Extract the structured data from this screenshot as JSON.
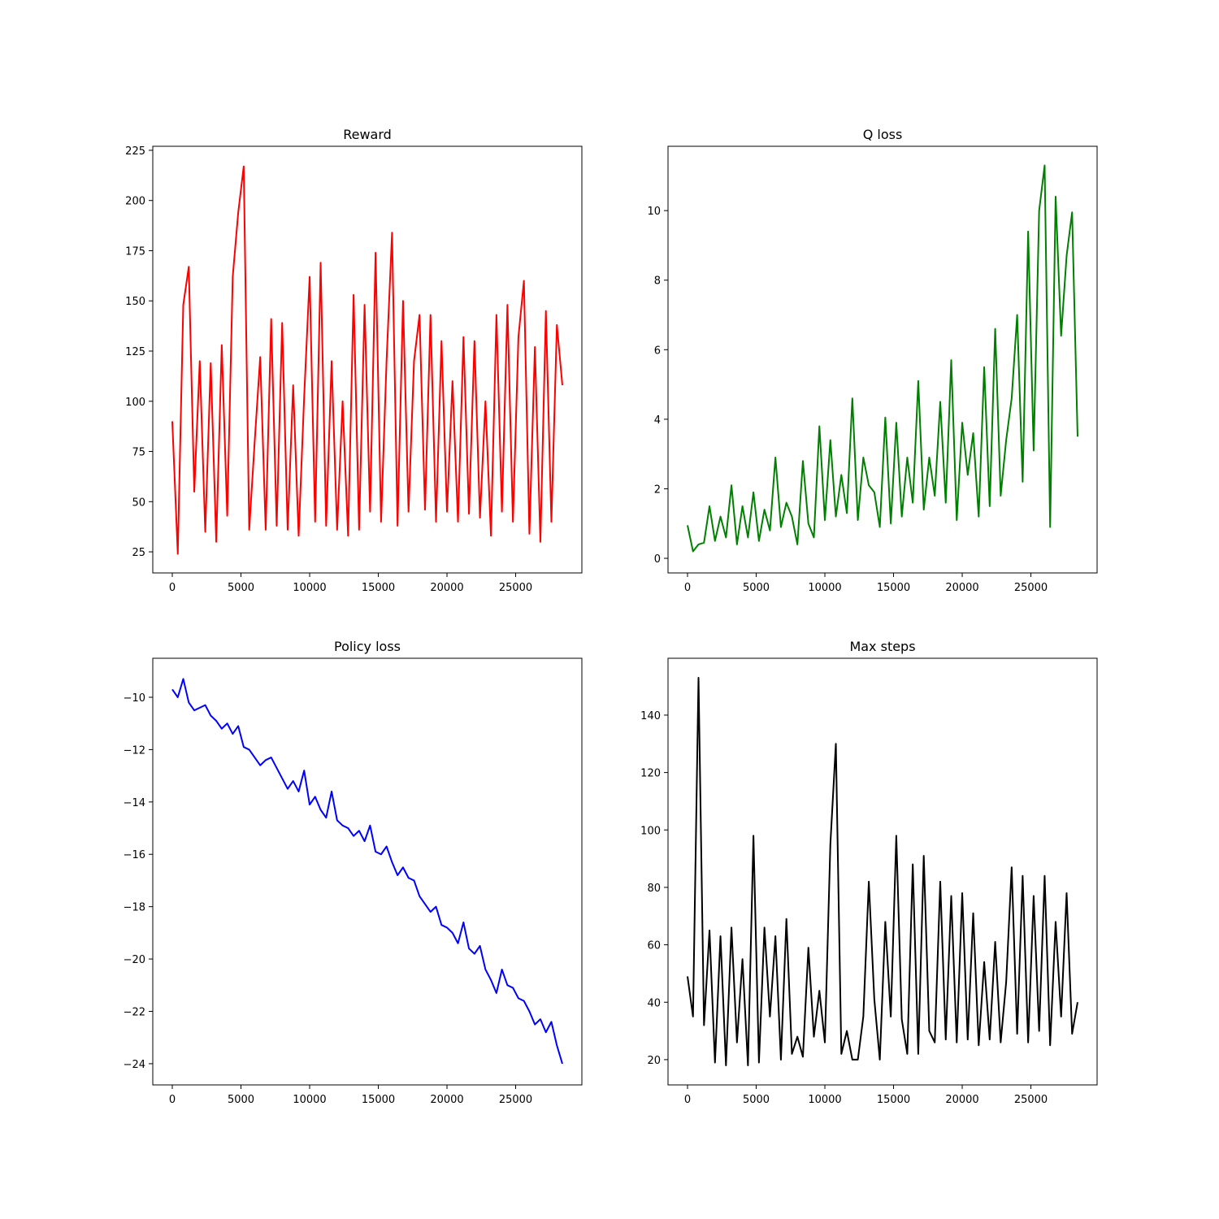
{
  "chart_data": [
    {
      "type": "line",
      "title": "Reward",
      "color": "#ff0000",
      "x": [
        0,
        400,
        800,
        1200,
        1600,
        2000,
        2400,
        2800,
        3200,
        3600,
        4000,
        4400,
        4800,
        5200,
        5600,
        6000,
        6400,
        6800,
        7200,
        7600,
        8000,
        8400,
        8800,
        9200,
        9600,
        10000,
        10400,
        10800,
        11200,
        11600,
        12000,
        12400,
        12800,
        13200,
        13600,
        14000,
        14400,
        14800,
        15200,
        15600,
        16000,
        16400,
        16800,
        17200,
        17600,
        18000,
        18400,
        18800,
        19200,
        19600,
        20000,
        20400,
        20800,
        21200,
        21600,
        22000,
        22400,
        22800,
        23200,
        23600,
        24000,
        24400,
        24800,
        25200,
        25600,
        26000,
        26400,
        26800,
        27200,
        27600,
        28000,
        28400
      ],
      "values": [
        90,
        24,
        148,
        167,
        55,
        120,
        35,
        119,
        30,
        128,
        43,
        162,
        194,
        217,
        36,
        80,
        122,
        36,
        141,
        38,
        139,
        36,
        108,
        33,
        102,
        162,
        40,
        169,
        38,
        120,
        36,
        100,
        33,
        153,
        36,
        148,
        45,
        174,
        40,
        120,
        184,
        38,
        150,
        45,
        120,
        143,
        46,
        143,
        40,
        130,
        45,
        110,
        40,
        132,
        44,
        130,
        42,
        100,
        33,
        143,
        45,
        148,
        40,
        132,
        160,
        34,
        127,
        30,
        145,
        40,
        138,
        108
      ],
      "xlim": [
        -1420,
        29820
      ],
      "xticks": [
        0,
        5000,
        10000,
        15000,
        20000,
        25000
      ],
      "ylim": [
        14.5,
        227
      ],
      "yticks": [
        25,
        50,
        75,
        100,
        125,
        150,
        175,
        200,
        225
      ]
    },
    {
      "type": "line",
      "title": "Q loss",
      "color": "#008000",
      "x": [
        0,
        400,
        800,
        1200,
        1600,
        2000,
        2400,
        2800,
        3200,
        3600,
        4000,
        4400,
        4800,
        5200,
        5600,
        6000,
        6400,
        6800,
        7200,
        7600,
        8000,
        8400,
        8800,
        9200,
        9600,
        10000,
        10400,
        10800,
        11200,
        11600,
        12000,
        12400,
        12800,
        13200,
        13600,
        14000,
        14400,
        14800,
        15200,
        15600,
        16000,
        16400,
        16800,
        17200,
        17600,
        18000,
        18400,
        18800,
        19200,
        19600,
        20000,
        20400,
        20800,
        21200,
        21600,
        22000,
        22400,
        22800,
        23200,
        23600,
        24000,
        24400,
        24800,
        25200,
        25600,
        26000,
        26400,
        26800,
        27200,
        27600,
        28000,
        28400
      ],
      "values": [
        0.95,
        0.2,
        0.4,
        0.45,
        1.5,
        0.5,
        1.2,
        0.6,
        2.1,
        0.4,
        1.5,
        0.6,
        1.9,
        0.5,
        1.4,
        0.8,
        2.9,
        0.9,
        1.6,
        1.2,
        0.4,
        2.8,
        1.0,
        0.6,
        3.8,
        1.1,
        3.4,
        1.2,
        2.4,
        1.3,
        4.6,
        1.1,
        2.9,
        2.1,
        1.9,
        0.9,
        4.05,
        1.0,
        3.9,
        1.2,
        2.9,
        1.6,
        5.1,
        1.4,
        2.9,
        1.8,
        4.5,
        1.6,
        5.7,
        1.1,
        3.9,
        2.4,
        3.6,
        1.2,
        5.5,
        1.5,
        6.6,
        1.8,
        3.4,
        4.6,
        7.0,
        2.2,
        9.4,
        3.1,
        10.0,
        11.3,
        0.9,
        10.4,
        6.4,
        8.7,
        9.95,
        3.5
      ],
      "xlim": [
        -1420,
        29820
      ],
      "xticks": [
        0,
        5000,
        10000,
        15000,
        20000,
        25000
      ],
      "ylim": [
        -0.42,
        11.85
      ],
      "yticks": [
        0,
        2,
        4,
        6,
        8,
        10
      ]
    },
    {
      "type": "line",
      "title": "Policy loss",
      "color": "#0000ff",
      "x": [
        0,
        400,
        800,
        1200,
        1600,
        2000,
        2400,
        2800,
        3200,
        3600,
        4000,
        4400,
        4800,
        5200,
        5600,
        6000,
        6400,
        6800,
        7200,
        7600,
        8000,
        8400,
        8800,
        9200,
        9600,
        10000,
        10400,
        10800,
        11200,
        11600,
        12000,
        12400,
        12800,
        13200,
        13600,
        14000,
        14400,
        14800,
        15200,
        15600,
        16000,
        16400,
        16800,
        17200,
        17600,
        18000,
        18400,
        18800,
        19200,
        19600,
        20000,
        20400,
        20800,
        21200,
        21600,
        22000,
        22400,
        22800,
        23200,
        23600,
        24000,
        24400,
        24800,
        25200,
        25600,
        26000,
        26400,
        26800,
        27200,
        27600,
        28000,
        28400
      ],
      "values": [
        -9.7,
        -10.0,
        -9.3,
        -10.2,
        -10.5,
        -10.4,
        -10.3,
        -10.7,
        -10.9,
        -11.2,
        -11.0,
        -11.4,
        -11.1,
        -11.9,
        -12.0,
        -12.3,
        -12.6,
        -12.4,
        -12.3,
        -12.7,
        -13.1,
        -13.5,
        -13.2,
        -13.6,
        -12.8,
        -14.1,
        -13.8,
        -14.3,
        -14.6,
        -13.6,
        -14.7,
        -14.9,
        -15.0,
        -15.3,
        -15.1,
        -15.5,
        -14.9,
        -15.9,
        -16.0,
        -15.7,
        -16.3,
        -16.8,
        -16.5,
        -16.9,
        -17.0,
        -17.6,
        -17.9,
        -18.2,
        -18.0,
        -18.7,
        -18.8,
        -19.0,
        -19.4,
        -18.6,
        -19.6,
        -19.8,
        -19.5,
        -20.4,
        -20.8,
        -21.3,
        -20.4,
        -21.0,
        -21.1,
        -21.5,
        -21.6,
        -22.0,
        -22.5,
        -22.3,
        -22.8,
        -22.4,
        -23.3,
        -24.0
      ],
      "xlim": [
        -1420,
        29820
      ],
      "xticks": [
        0,
        5000,
        10000,
        15000,
        20000,
        25000
      ],
      "ylim": [
        -24.81,
        -8.51
      ],
      "yticks": [
        {
          "value": -24,
          "label": "−24"
        },
        {
          "value": -22,
          "label": "−22"
        },
        {
          "value": -20,
          "label": "−20"
        },
        {
          "value": -18,
          "label": "−18"
        },
        {
          "value": -16,
          "label": "−16"
        },
        {
          "value": -14,
          "label": "−14"
        },
        {
          "value": -12,
          "label": "−12"
        },
        {
          "value": -10,
          "label": "−10"
        }
      ]
    },
    {
      "type": "line",
      "title": "Max steps",
      "color": "#000000",
      "x": [
        0,
        400,
        800,
        1200,
        1600,
        2000,
        2400,
        2800,
        3200,
        3600,
        4000,
        4400,
        4800,
        5200,
        5600,
        6000,
        6400,
        6800,
        7200,
        7600,
        8000,
        8400,
        8800,
        9200,
        9600,
        10000,
        10400,
        10800,
        11200,
        11600,
        12000,
        12400,
        12800,
        13200,
        13600,
        14000,
        14400,
        14800,
        15200,
        15600,
        16000,
        16400,
        16800,
        17200,
        17600,
        18000,
        18400,
        18800,
        19200,
        19600,
        20000,
        20400,
        20800,
        21200,
        21600,
        22000,
        22400,
        22800,
        23200,
        23600,
        24000,
        24400,
        24800,
        25200,
        25600,
        26000,
        26400,
        26800,
        27200,
        27600,
        28000,
        28400
      ],
      "values": [
        49,
        35,
        153,
        32,
        65,
        19,
        63,
        18,
        66,
        26,
        55,
        18,
        98,
        19,
        66,
        35,
        63,
        20,
        69,
        22,
        28,
        21,
        59,
        28,
        44,
        26,
        95,
        130,
        22,
        30,
        20,
        20,
        35,
        82,
        41,
        20,
        68,
        35,
        98,
        34,
        22,
        88,
        22,
        91,
        30,
        26,
        82,
        27,
        77,
        26,
        78,
        27,
        71,
        25,
        54,
        27,
        61,
        26,
        47,
        87,
        29,
        84,
        26,
        77,
        30,
        84,
        25,
        68,
        35,
        78,
        29,
        40
      ],
      "xlim": [
        -1420,
        29820
      ],
      "xticks": [
        0,
        5000,
        10000,
        15000,
        20000,
        25000
      ],
      "ylim": [
        11.2,
        159.8
      ],
      "yticks": [
        20,
        40,
        60,
        80,
        100,
        120,
        140
      ]
    }
  ]
}
